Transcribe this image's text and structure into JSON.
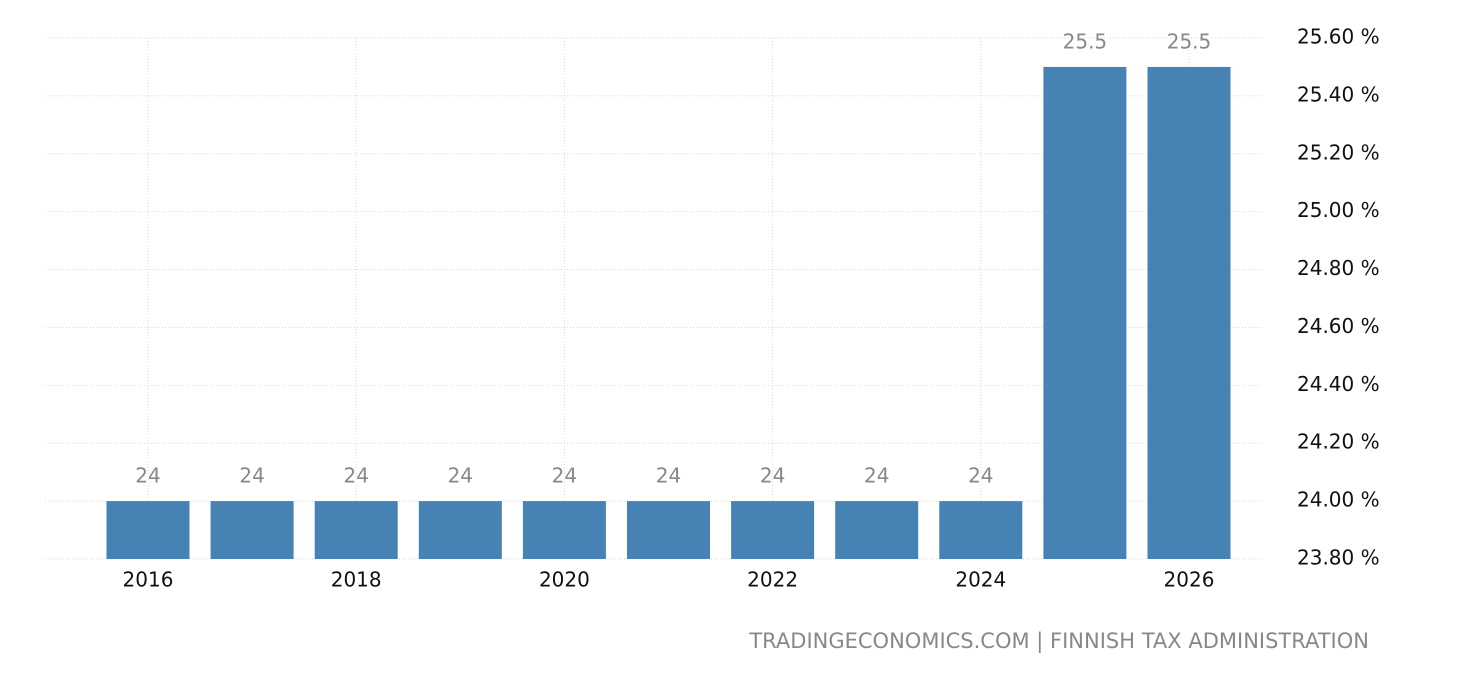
{
  "chart_data": {
    "type": "bar",
    "categories": [
      "2016",
      null,
      "2018",
      null,
      "2020",
      null,
      "2022",
      null,
      "2024",
      null,
      "2026"
    ],
    "values": [
      24,
      24,
      24,
      24,
      24,
      24,
      24,
      24,
      24,
      25.5,
      25.5
    ],
    "color": "#4682b4",
    "ylim": [
      23.8,
      25.6
    ],
    "yticks": [
      {
        "value": 23.8,
        "label": "23.80 %"
      },
      {
        "value": 24.0,
        "label": "24.00 %"
      },
      {
        "value": 24.2,
        "label": "24.20 %"
      },
      {
        "value": 24.4,
        "label": "24.40 %"
      },
      {
        "value": 24.6,
        "label": "24.60 %"
      },
      {
        "value": 24.8,
        "label": "24.80 %"
      },
      {
        "value": 25.0,
        "label": "25.00 %"
      },
      {
        "value": 25.2,
        "label": "25.20 %"
      },
      {
        "value": 25.4,
        "label": "25.40 %"
      },
      {
        "value": 25.6,
        "label": "25.60 %"
      }
    ],
    "y_axis_side": "right",
    "grid": true,
    "source": "TRADINGECONOMICS.COM | FINNISH TAX ADMINISTRATION"
  }
}
